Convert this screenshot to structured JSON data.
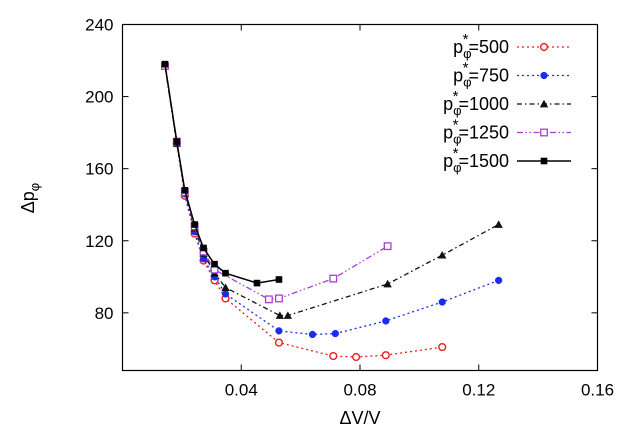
{
  "chart_data": {
    "type": "line",
    "title": "",
    "xlabel": "ΔV/V",
    "ylabel_main": "Δp",
    "ylabel_sub": "φ",
    "xlim": [
      0,
      0.16
    ],
    "ylim": [
      48,
      240
    ],
    "x_ticks": [
      0.04,
      0.08,
      0.12,
      0.16
    ],
    "x_tick_labels": [
      "0.04",
      "0.08",
      "0.12",
      "0.16"
    ],
    "y_ticks": [
      80,
      120,
      160,
      200,
      240
    ],
    "y_tick_labels": [
      "80",
      "120",
      "160",
      "200",
      "240"
    ],
    "grid": false,
    "legend_position": "top-right",
    "legend_prefix": "p",
    "legend_sub": "φ",
    "legend_sup": "*",
    "series": [
      {
        "name": "=500",
        "color": "#ee1c1c",
        "marker": "open-circle",
        "dash": "dotted",
        "x": [
          0.0143,
          0.0183,
          0.021,
          0.0243,
          0.0273,
          0.031,
          0.0347,
          0.0527,
          0.071,
          0.0787,
          0.0887,
          0.1077
        ],
        "y": [
          217,
          174,
          145,
          124,
          109,
          98,
          88,
          63.5,
          56,
          55.5,
          56.5,
          61
        ]
      },
      {
        "name": "=750",
        "color": "#1c2cee",
        "marker": "filled-circle",
        "dash": "dotted",
        "x": [
          0.0143,
          0.0183,
          0.021,
          0.0243,
          0.0273,
          0.031,
          0.0347,
          0.0527,
          0.064,
          0.0717,
          0.0887,
          0.1077,
          0.1267
        ],
        "y": [
          217,
          174,
          146,
          125,
          110,
          100,
          90.5,
          70,
          68,
          68.5,
          75.5,
          86,
          98
        ]
      },
      {
        "name": "=1000",
        "color": "#111111",
        "marker": "filled-triangle",
        "dash": "dashdot",
        "x": [
          0.0143,
          0.0183,
          0.021,
          0.0243,
          0.0273,
          0.031,
          0.0347,
          0.053,
          0.0557,
          0.0893,
          0.1077,
          0.1267
        ],
        "y": [
          217,
          174,
          147,
          127,
          113,
          102,
          94,
          78.5,
          78.5,
          96,
          112,
          129
        ]
      },
      {
        "name": "=1250",
        "color": "#a63fd6",
        "marker": "open-square",
        "dash": "dashdotdot",
        "x": [
          0.0143,
          0.0183,
          0.021,
          0.0243,
          0.0273,
          0.031,
          0.0493,
          0.0527,
          0.071,
          0.0893
        ],
        "y": [
          217,
          175,
          147,
          128,
          114,
          104,
          87.5,
          88,
          99,
          117
        ]
      },
      {
        "name": "=1500",
        "color": "#000000",
        "marker": "filled-square",
        "dash": "solid",
        "x": [
          0.0143,
          0.0183,
          0.021,
          0.0243,
          0.0273,
          0.031,
          0.0347,
          0.0453,
          0.0527
        ],
        "y": [
          218,
          175,
          148,
          129,
          116,
          107,
          102,
          96.5,
          98.5
        ]
      }
    ]
  }
}
